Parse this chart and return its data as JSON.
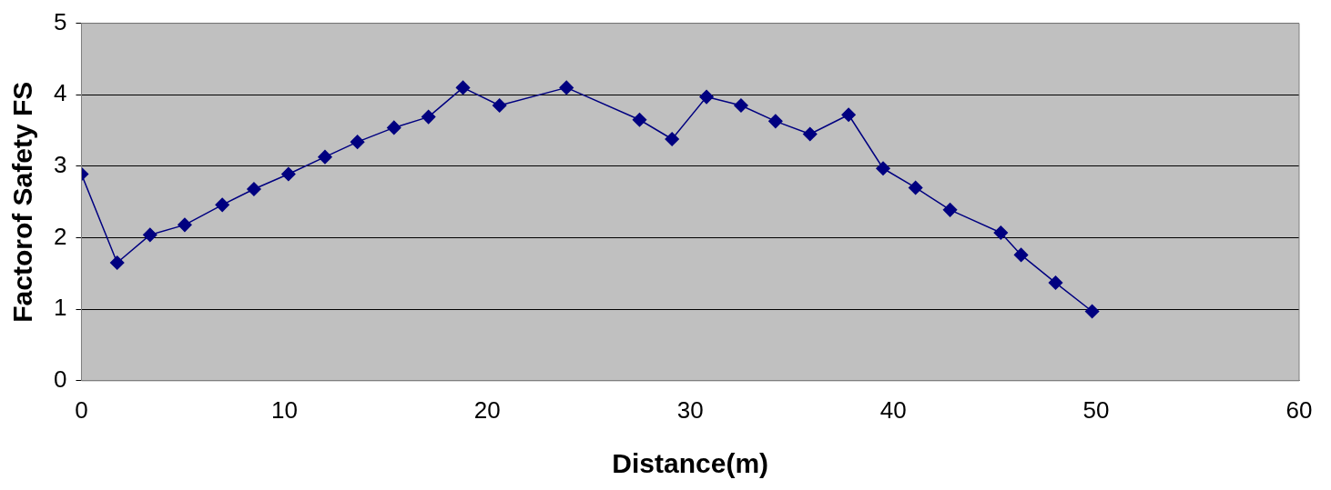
{
  "chart_data": {
    "type": "line",
    "xlabel": "Distance(m)",
    "ylabel": "Factorof Safety FS",
    "x": [
      0,
      1.76,
      3.38,
      5.09,
      6.94,
      8.5,
      10.2,
      12.0,
      13.6,
      15.4,
      17.1,
      18.8,
      20.6,
      23.9,
      27.5,
      29.1,
      30.8,
      32.5,
      34.2,
      35.9,
      37.8,
      39.5,
      41.1,
      42.8,
      45.3,
      46.3,
      48.0,
      49.8
    ],
    "series": [
      {
        "color": "#000080",
        "values": [
          2.89,
          1.65,
          2.04,
          2.18,
          2.46,
          2.68,
          2.89,
          3.13,
          3.34,
          3.54,
          3.69,
          4.1,
          3.85,
          4.1,
          3.65,
          3.38,
          3.97,
          3.85,
          3.63,
          3.45,
          3.72,
          2.97,
          2.7,
          2.39,
          2.07,
          1.76,
          1.37,
          0.97
        ]
      }
    ],
    "xlim": [
      0,
      60
    ],
    "xticks": [
      0,
      10,
      20,
      30,
      40,
      50,
      60
    ],
    "ylim": [
      0,
      5
    ],
    "yticks": [
      0,
      1,
      2,
      3,
      4,
      5
    ],
    "grid": "y",
    "legend": false,
    "marker": "diamond",
    "line_style": "solid"
  }
}
